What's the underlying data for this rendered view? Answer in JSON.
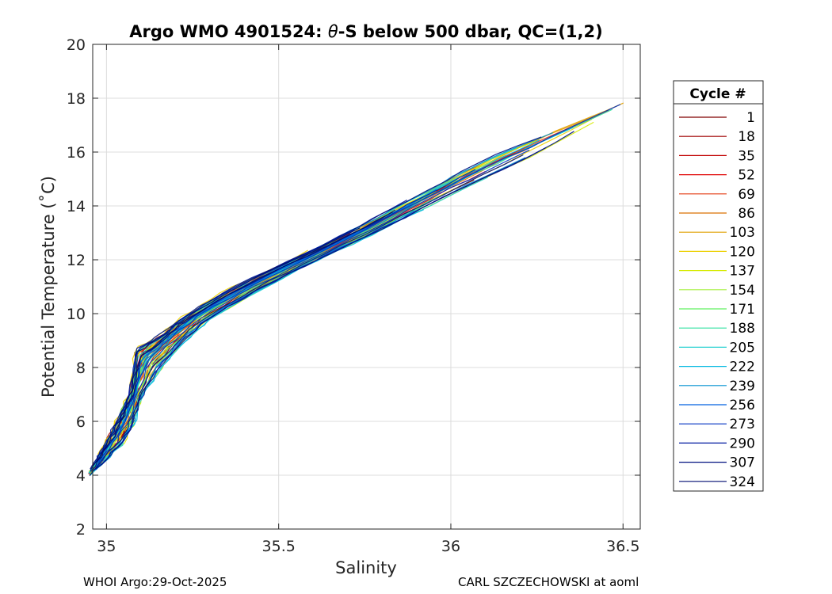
{
  "chart_data": {
    "type": "line",
    "title": "Argo WMO 4901524: θ-S below 500 dbar,  QC=(1,2)",
    "title_parts": {
      "prefix": "Argo WMO 4901524: ",
      "theta": "θ",
      "suffix": "-S below 500 dbar,  QC=(1,2)"
    },
    "xlabel": "Salinity",
    "ylabel": "Potential Temperature (˚C)",
    "xlim": [
      34.96,
      36.55
    ],
    "ylim": [
      2,
      20
    ],
    "xticks": [
      35,
      35.5,
      36,
      36.5
    ],
    "xtick_labels": [
      "35",
      "35.5",
      "36",
      "36.5"
    ],
    "yticks": [
      2,
      4,
      6,
      8,
      10,
      12,
      14,
      16,
      18,
      20
    ],
    "ytick_labels": [
      "2",
      "4",
      "6",
      "8",
      "10",
      "12",
      "14",
      "16",
      "18",
      "20"
    ],
    "grid": true,
    "legend_position": "right, outside",
    "legend_title": "Cycle #",
    "legend_entries": [
      {
        "label": "1",
        "color": "#800000"
      },
      {
        "label": "18",
        "color": "#a00000"
      },
      {
        "label": "35",
        "color": "#c00000"
      },
      {
        "label": "52",
        "color": "#e00000"
      },
      {
        "label": "69",
        "color": "#e43a12"
      },
      {
        "label": "86",
        "color": "#d97100"
      },
      {
        "label": "103",
        "color": "#e0a000"
      },
      {
        "label": "120",
        "color": "#ecd000"
      },
      {
        "label": "137",
        "color": "#d6ea00"
      },
      {
        "label": "154",
        "color": "#a6f040"
      },
      {
        "label": "171",
        "color": "#60f060"
      },
      {
        "label": "188",
        "color": "#30e0a0"
      },
      {
        "label": "205",
        "color": "#20d0d0"
      },
      {
        "label": "222",
        "color": "#00b8e0"
      },
      {
        "label": "239",
        "color": "#0090d0"
      },
      {
        "label": "256",
        "color": "#0060e0"
      },
      {
        "label": "273",
        "color": "#0030c0"
      },
      {
        "label": "290",
        "color": "#0018a0"
      },
      {
        "label": "307",
        "color": "#001080"
      },
      {
        "label": "324",
        "color": "#000c70"
      }
    ],
    "series_envelope": {
      "description": "Profiles follow a common theta-S curve; lower bound (most saline at given T) and upper bound",
      "lower": [
        [
          34.95,
          3.9
        ],
        [
          35.0,
          4.6
        ],
        [
          35.05,
          5.2
        ],
        [
          35.08,
          5.9
        ],
        [
          35.1,
          6.8
        ],
        [
          35.15,
          7.8
        ],
        [
          35.22,
          8.9
        ],
        [
          35.3,
          9.8
        ],
        [
          35.45,
          10.9
        ],
        [
          35.6,
          11.9
        ],
        [
          35.8,
          13.1
        ],
        [
          36.0,
          14.4
        ],
        [
          36.2,
          15.6
        ],
        [
          36.4,
          17.0
        ],
        [
          36.55,
          18.1
        ]
      ],
      "upper": [
        [
          34.95,
          4.1
        ],
        [
          34.98,
          4.8
        ],
        [
          35.01,
          5.6
        ],
        [
          35.04,
          6.4
        ],
        [
          35.07,
          7.2
        ],
        [
          35.08,
          8.7
        ],
        [
          35.15,
          9.2
        ],
        [
          35.22,
          9.9
        ],
        [
          35.35,
          10.9
        ],
        [
          35.55,
          12.1
        ],
        [
          35.75,
          13.4
        ],
        [
          35.95,
          14.8
        ],
        [
          36.1,
          15.8
        ],
        [
          36.3,
          16.8
        ],
        [
          36.55,
          18.1
        ]
      ]
    },
    "line_color": "#ff0000"
  },
  "footer": {
    "left": "WHOI Argo:29-Oct-2025",
    "right": "CARL SZCZECHOWSKI at aoml"
  }
}
